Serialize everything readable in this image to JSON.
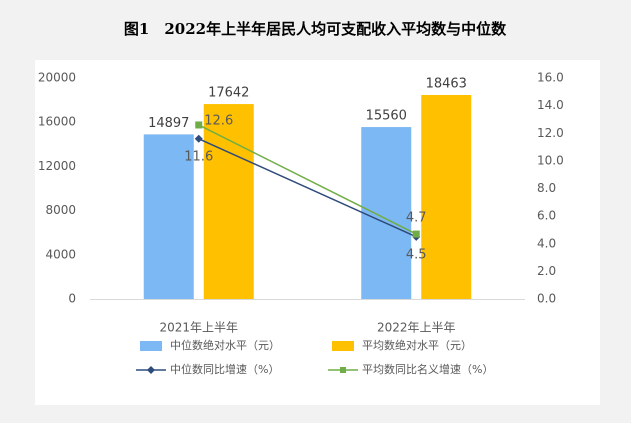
{
  "chart_data": {
    "type": "bar",
    "title": "图1　2022年上半年居民人均可支配收入平均数与中位数",
    "categories": [
      "2021年上半年",
      "2022年上半年"
    ],
    "series": [
      {
        "name": "中位数绝对水平（元）",
        "type": "bar",
        "color": "#7cb8f4",
        "values": [
          14897,
          15560
        ]
      },
      {
        "name": "平均数绝对水平（元）",
        "type": "bar",
        "color": "#ffc000",
        "values": [
          17642,
          18463
        ]
      },
      {
        "name": "中位数同比增速（%）",
        "type": "line",
        "axis": "y2",
        "color": "#2f4b7c",
        "marker": "diamond",
        "values": [
          11.6,
          4.5
        ]
      },
      {
        "name": "平均数同比名义增速（%）",
        "type": "line",
        "axis": "y2",
        "color": "#70ad47",
        "marker": "square",
        "values": [
          12.6,
          4.7
        ]
      }
    ],
    "ylim": [
      0,
      20000
    ],
    "yticks": [
      0,
      4000,
      8000,
      12000,
      16000,
      20000
    ],
    "y2lim": [
      0,
      16
    ],
    "y2ticks": [
      {
        "value": 0,
        "label": "0.0"
      },
      {
        "value": 2,
        "label": "2.0"
      },
      {
        "value": 4,
        "label": "4.0"
      },
      {
        "value": 6,
        "label": "6.0"
      },
      {
        "value": 8,
        "label": "8.0"
      },
      {
        "value": 10,
        "label": "10.0"
      },
      {
        "value": 12,
        "label": "12.0"
      },
      {
        "value": 14,
        "label": "14.0"
      },
      {
        "value": 16,
        "label": "16.0"
      }
    ]
  }
}
